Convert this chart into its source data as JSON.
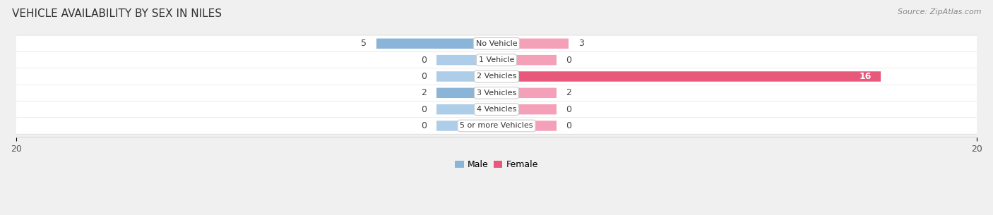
{
  "title": "VEHICLE AVAILABILITY BY SEX IN NILES",
  "source": "Source: ZipAtlas.com",
  "categories": [
    "No Vehicle",
    "1 Vehicle",
    "2 Vehicles",
    "3 Vehicles",
    "4 Vehicles",
    "5 or more Vehicles"
  ],
  "male_values": [
    5,
    0,
    0,
    2,
    0,
    0
  ],
  "female_values": [
    3,
    0,
    16,
    2,
    0,
    0
  ],
  "male_color": "#8ab4d8",
  "male_color_light": "#aecde8",
  "female_color": "#f4a0b8",
  "female_color_hot": "#e8587a",
  "xlim": 20,
  "min_bar": 2.5,
  "background_color": "#f0f0f0",
  "row_color_even": "#f5f5f5",
  "row_color_odd": "#ebebeb",
  "legend_male_color": "#8ab4d8",
  "legend_female_color": "#e8587a",
  "title_fontsize": 11,
  "source_fontsize": 8,
  "label_fontsize": 8,
  "value_fontsize": 9,
  "tick_fontsize": 9
}
